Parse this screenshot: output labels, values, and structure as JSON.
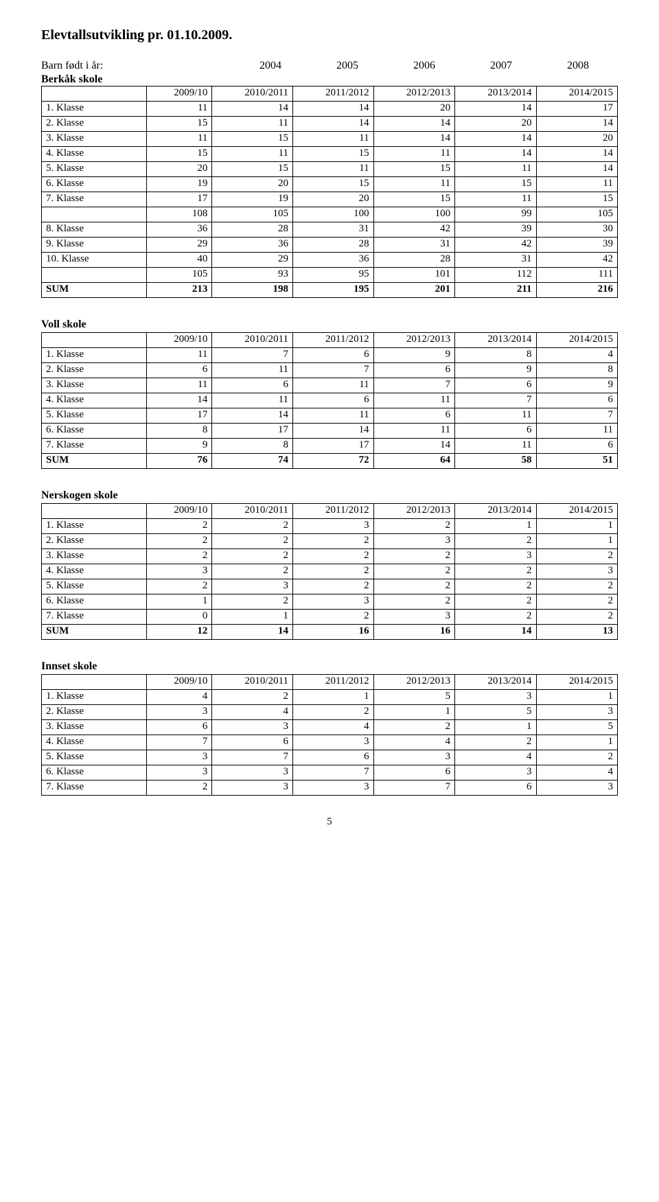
{
  "title": "Elevtallsutvikling pr. 01.10.2009.",
  "birth_line": {
    "label": "Barn født i år:",
    "years": [
      "2004",
      "2005",
      "2006",
      "2007",
      "2008"
    ]
  },
  "year_headers": [
    "2009/10",
    "2010/2011",
    "2011/2012",
    "2012/2013",
    "2013/2014",
    "2014/2015"
  ],
  "tables": [
    {
      "name": "Berkåk skole",
      "rows": [
        {
          "label": "1. Klasse",
          "vals": [
            11,
            14,
            14,
            20,
            14,
            17
          ]
        },
        {
          "label": "2. Klasse",
          "vals": [
            15,
            11,
            14,
            14,
            20,
            14
          ]
        },
        {
          "label": "3. Klasse",
          "vals": [
            11,
            15,
            11,
            14,
            14,
            20
          ]
        },
        {
          "label": "4. Klasse",
          "vals": [
            15,
            11,
            15,
            11,
            14,
            14
          ]
        },
        {
          "label": "5. Klasse",
          "vals": [
            20,
            15,
            11,
            15,
            11,
            14
          ]
        },
        {
          "label": "6. Klasse",
          "vals": [
            19,
            20,
            15,
            11,
            15,
            11
          ]
        },
        {
          "label": "7. Klasse",
          "vals": [
            17,
            19,
            20,
            15,
            11,
            15
          ]
        },
        {
          "label": "",
          "vals": [
            108,
            105,
            100,
            100,
            99,
            105
          ]
        },
        {
          "label": "8. Klasse",
          "vals": [
            36,
            28,
            31,
            42,
            39,
            30
          ]
        },
        {
          "label": "9. Klasse",
          "vals": [
            29,
            36,
            28,
            31,
            42,
            39
          ]
        },
        {
          "label": "10. Klasse",
          "vals": [
            40,
            29,
            36,
            28,
            31,
            42
          ]
        },
        {
          "label": "",
          "vals": [
            105,
            93,
            95,
            101,
            112,
            111
          ]
        },
        {
          "label": "SUM",
          "vals": [
            213,
            198,
            195,
            201,
            211,
            216
          ],
          "bold": true
        }
      ]
    },
    {
      "name": "Voll skole",
      "rows": [
        {
          "label": "1. Klasse",
          "vals": [
            11,
            7,
            6,
            9,
            8,
            4
          ]
        },
        {
          "label": "2. Klasse",
          "vals": [
            6,
            11,
            7,
            6,
            9,
            8
          ]
        },
        {
          "label": "3. Klasse",
          "vals": [
            11,
            6,
            11,
            7,
            6,
            9
          ]
        },
        {
          "label": "4. Klasse",
          "vals": [
            14,
            11,
            6,
            11,
            7,
            6
          ]
        },
        {
          "label": "5. Klasse",
          "vals": [
            17,
            14,
            11,
            6,
            11,
            7
          ]
        },
        {
          "label": "6. Klasse",
          "vals": [
            8,
            17,
            14,
            11,
            6,
            11
          ]
        },
        {
          "label": "7. Klasse",
          "vals": [
            9,
            8,
            17,
            14,
            11,
            6
          ]
        },
        {
          "label": "SUM",
          "vals": [
            76,
            74,
            72,
            64,
            58,
            51
          ],
          "bold": true
        }
      ]
    },
    {
      "name": "Nerskogen skole",
      "rows": [
        {
          "label": "1. Klasse",
          "vals": [
            2,
            2,
            3,
            2,
            1,
            1
          ]
        },
        {
          "label": "2. Klasse",
          "vals": [
            2,
            2,
            2,
            3,
            2,
            1
          ]
        },
        {
          "label": "3. Klasse",
          "vals": [
            2,
            2,
            2,
            2,
            3,
            2
          ]
        },
        {
          "label": "4. Klasse",
          "vals": [
            3,
            2,
            2,
            2,
            2,
            3
          ]
        },
        {
          "label": "5. Klasse",
          "vals": [
            2,
            3,
            2,
            2,
            2,
            2
          ]
        },
        {
          "label": "6. Klasse",
          "vals": [
            1,
            2,
            3,
            2,
            2,
            2
          ]
        },
        {
          "label": "7. Klasse",
          "vals": [
            0,
            1,
            2,
            3,
            2,
            2
          ]
        },
        {
          "label": "SUM",
          "vals": [
            12,
            14,
            16,
            16,
            14,
            13
          ],
          "bold": true
        }
      ]
    },
    {
      "name": "Innset skole",
      "rows": [
        {
          "label": "1. Klasse",
          "vals": [
            4,
            2,
            1,
            5,
            3,
            1
          ]
        },
        {
          "label": "2. Klasse",
          "vals": [
            3,
            4,
            2,
            1,
            5,
            3
          ]
        },
        {
          "label": "3. Klasse",
          "vals": [
            6,
            3,
            4,
            2,
            1,
            5
          ]
        },
        {
          "label": "4. Klasse",
          "vals": [
            7,
            6,
            3,
            4,
            2,
            1
          ]
        },
        {
          "label": "5. Klasse",
          "vals": [
            3,
            7,
            6,
            3,
            4,
            2
          ]
        },
        {
          "label": "6. Klasse",
          "vals": [
            3,
            3,
            7,
            6,
            3,
            4
          ]
        },
        {
          "label": "7. Klasse",
          "vals": [
            2,
            3,
            3,
            7,
            6,
            3
          ]
        }
      ]
    }
  ],
  "page_number": "5",
  "style": {
    "font_family": "Times New Roman",
    "body_font_size_pt": 12,
    "title_font_size_pt": 15,
    "border_color": "#000000",
    "background_color": "#ffffff",
    "text_color": "#000000"
  }
}
